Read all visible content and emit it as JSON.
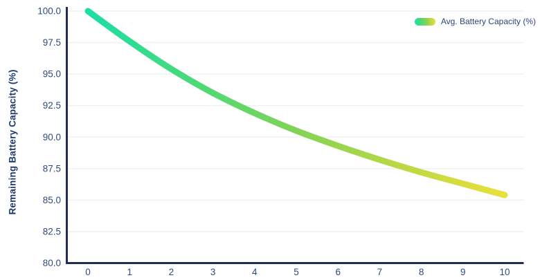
{
  "chart_data": {
    "type": "line",
    "title": "",
    "xlabel": "",
    "ylabel": "Remaining Battery Capacity (%)",
    "x": [
      0,
      1,
      2,
      3,
      4,
      5,
      6,
      7,
      8,
      9,
      10
    ],
    "series": [
      {
        "name": "Avg. Battery Capacity (%)",
        "values": [
          100.0,
          97.6,
          95.4,
          93.5,
          91.9,
          90.5,
          89.3,
          88.2,
          87.2,
          86.3,
          85.4
        ]
      }
    ],
    "xlim": [
      0,
      10
    ],
    "ylim": [
      80.0,
      100.0
    ],
    "xticks": [
      0,
      1,
      2,
      3,
      4,
      5,
      6,
      7,
      8,
      9,
      10
    ],
    "yticks": [
      100.0,
      97.5,
      95.0,
      92.5,
      90.0,
      87.5,
      85.0,
      82.5,
      80.0
    ],
    "grid": "horizontal",
    "legend_position": "top-right",
    "colors": {
      "axis": "#1d2e55",
      "tick_label": "#2e4a7c",
      "grid": "#eff2f2",
      "gradient": [
        "#1edda7",
        "#49da78",
        "#82d356",
        "#bcd845",
        "#e9e03b"
      ],
      "legend_text": "#2a4578",
      "title_text": "#1e3a6d"
    },
    "line_width": 9
  }
}
